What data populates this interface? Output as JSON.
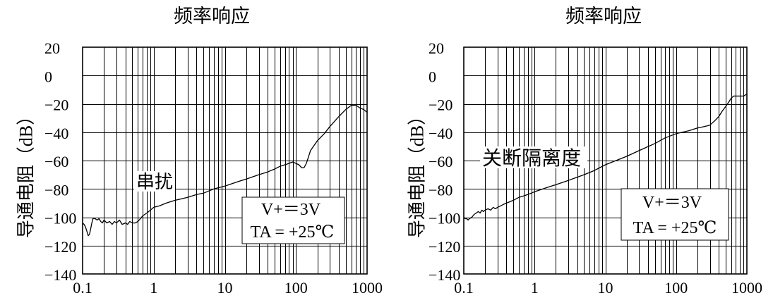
{
  "chart_data": [
    {
      "type": "line",
      "title": "频率响应",
      "ylabel": "导通电阻（dB）",
      "xscale": "log",
      "xlim": [
        0.1,
        1000
      ],
      "ylim": [
        -140,
        20
      ],
      "grid": true,
      "xticks": [
        0.1,
        1,
        10,
        100,
        1000
      ],
      "xtick_labels": [
        "0.1",
        "1",
        "10",
        "100",
        "1000"
      ],
      "yticks": [
        20,
        0,
        -20,
        -40,
        -60,
        -80,
        -100,
        -120,
        -140
      ],
      "ytick_labels": [
        "20",
        "0",
        "−20",
        "−40",
        "−60",
        "−80",
        "−100",
        "−120",
        "−140"
      ],
      "series": [
        {
          "name": "串扰",
          "x": [
            0.1,
            0.105,
            0.11,
            0.115,
            0.12,
            0.125,
            0.13,
            0.135,
            0.14,
            0.15,
            0.16,
            0.17,
            0.18,
            0.19,
            0.2,
            0.22,
            0.24,
            0.26,
            0.28,
            0.3,
            0.33,
            0.36,
            0.4,
            0.43,
            0.46,
            0.5,
            0.55,
            0.6,
            0.65,
            0.7,
            0.8,
            0.9,
            1,
            1.2,
            1.5,
            2,
            3,
            4,
            5,
            7,
            10,
            15,
            20,
            30,
            40,
            50,
            60,
            70,
            80,
            90,
            100,
            110,
            120,
            130,
            140,
            160,
            200,
            250,
            300,
            400,
            500,
            600,
            700,
            800,
            900,
            1000
          ],
          "y": [
            -104,
            -105,
            -107,
            -110,
            -113,
            -112,
            -108,
            -104,
            -101,
            -101,
            -102,
            -101,
            -103,
            -104,
            -102,
            -104,
            -103,
            -105,
            -103,
            -104,
            -102,
            -105,
            -104,
            -105,
            -103,
            -104,
            -104,
            -103,
            -101,
            -99,
            -97,
            -95,
            -93,
            -92,
            -90,
            -88,
            -86,
            -84,
            -83,
            -80,
            -78,
            -75,
            -73,
            -70,
            -68,
            -66,
            -64,
            -63,
            -62,
            -61,
            -62,
            -63,
            -65,
            -65,
            -62,
            -53,
            -46,
            -41,
            -36,
            -29,
            -24,
            -21,
            -21,
            -23,
            -24,
            -26
          ]
        }
      ],
      "annotations": [
        "V+＝3V",
        "TA = +25℃"
      ]
    },
    {
      "type": "line",
      "title": "频率响应",
      "ylabel": "导通电阻（dB）",
      "xscale": "log",
      "xlim": [
        0.1,
        1000
      ],
      "ylim": [
        -140,
        20
      ],
      "grid": true,
      "xticks": [
        0.1,
        1,
        10,
        100,
        1000
      ],
      "xtick_labels": [
        "0.1",
        "1",
        "10",
        "100",
        "1000"
      ],
      "yticks": [
        20,
        0,
        -20,
        -40,
        -60,
        -80,
        -100,
        -120,
        -140
      ],
      "ytick_labels": [
        "20",
        "0",
        "−20",
        "−40",
        "−60",
        "−80",
        "−100",
        "−120",
        "−140"
      ],
      "series": [
        {
          "name": "关断隔离度",
          "x": [
            0.1,
            0.105,
            0.11,
            0.115,
            0.12,
            0.13,
            0.14,
            0.15,
            0.16,
            0.17,
            0.18,
            0.19,
            0.2,
            0.22,
            0.24,
            0.26,
            0.28,
            0.3,
            0.33,
            0.36,
            0.4,
            0.45,
            0.5,
            0.6,
            0.7,
            0.8,
            1,
            1.5,
            2,
            3,
            5,
            7,
            10,
            20,
            30,
            50,
            70,
            100,
            150,
            200,
            250,
            300,
            350,
            400,
            450,
            500,
            550,
            600,
            650,
            700,
            800,
            900,
            1000
          ],
          "y": [
            -100,
            -101,
            -101,
            -102,
            -101,
            -100,
            -98,
            -97,
            -96,
            -97,
            -95,
            -96,
            -95,
            -94,
            -95,
            -93,
            -94,
            -93,
            -92,
            -91,
            -90,
            -89,
            -88,
            -86,
            -85,
            -84,
            -82,
            -79,
            -77,
            -74,
            -70,
            -67,
            -63,
            -57,
            -53,
            -48,
            -44,
            -41,
            -39,
            -37,
            -36,
            -35,
            -32,
            -29,
            -25,
            -22,
            -19,
            -16,
            -14.5,
            -14.5,
            -14.5,
            -14.5,
            -13
          ]
        }
      ],
      "annotations": [
        "V+＝3V",
        "TA = +25℃"
      ]
    }
  ]
}
